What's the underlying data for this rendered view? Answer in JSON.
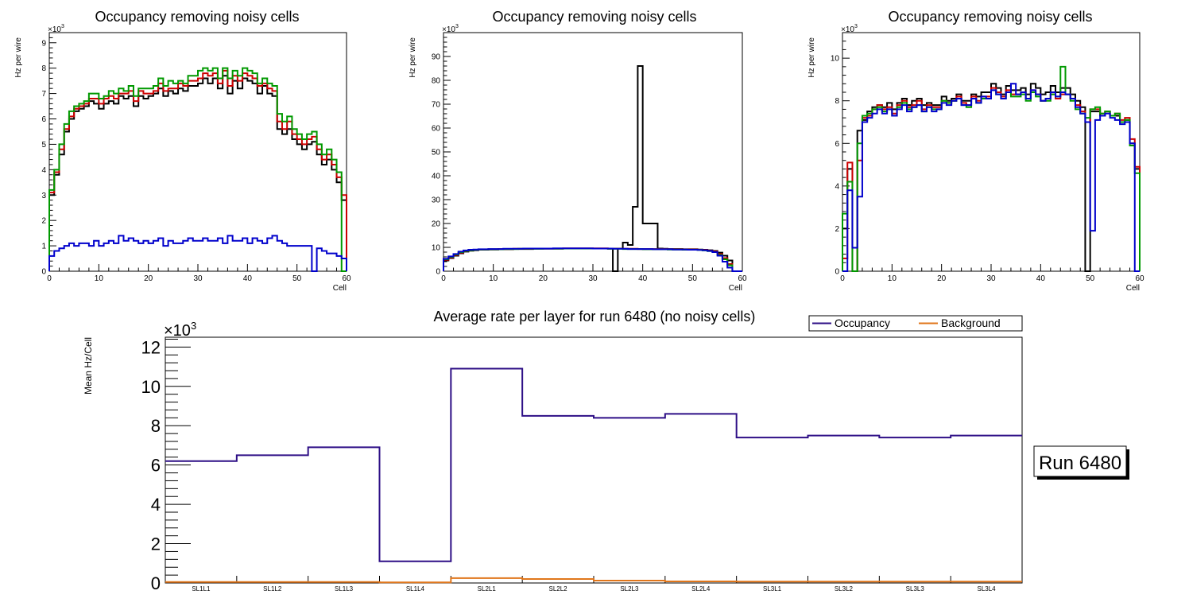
{
  "chart_data": [
    {
      "type": "histogram",
      "title": "Occupancy removing noisy cells",
      "xlabel": "Cell",
      "ylabel": "Hz per wire",
      "multiplier": "×10",
      "multiplier_exp": "3",
      "xlim": [
        0,
        60
      ],
      "ylim": [
        0,
        9.4
      ],
      "xticks": [
        0,
        10,
        20,
        30,
        40,
        50,
        60
      ],
      "yticks": [
        0,
        1,
        2,
        3,
        4,
        5,
        6,
        7,
        8,
        9
      ],
      "series": [
        {
          "name": "black",
          "color": "#000000",
          "values": [
            3.0,
            3.8,
            4.6,
            5.5,
            6.0,
            6.3,
            6.4,
            6.5,
            6.7,
            6.6,
            6.4,
            6.6,
            6.7,
            6.6,
            6.9,
            6.8,
            6.9,
            6.5,
            6.9,
            6.8,
            6.9,
            7.0,
            7.2,
            6.9,
            7.1,
            7.0,
            7.2,
            7.1,
            7.3,
            7.3,
            7.4,
            7.6,
            7.4,
            7.6,
            7.2,
            7.7,
            7.0,
            7.5,
            7.2,
            7.6,
            7.5,
            7.4,
            7.0,
            7.3,
            7.0,
            6.9,
            5.6,
            5.4,
            5.6,
            5.2,
            5.0,
            4.8,
            5.0,
            5.1,
            4.6,
            4.2,
            4.4,
            4.0,
            3.5,
            2.8
          ]
        },
        {
          "name": "red",
          "color": "#cc0000",
          "values": [
            3.1,
            3.9,
            4.8,
            5.6,
            6.1,
            6.4,
            6.5,
            6.6,
            6.8,
            6.8,
            6.6,
            6.8,
            6.9,
            6.8,
            7.0,
            7.0,
            7.1,
            6.7,
            7.1,
            7.0,
            7.0,
            7.1,
            7.4,
            7.1,
            7.2,
            7.2,
            7.4,
            7.3,
            7.5,
            7.5,
            7.6,
            7.8,
            7.7,
            7.8,
            7.4,
            7.9,
            7.3,
            7.7,
            7.5,
            7.8,
            7.7,
            7.6,
            7.3,
            7.4,
            7.2,
            7.1,
            5.9,
            5.6,
            5.9,
            5.4,
            5.2,
            5.0,
            5.2,
            5.3,
            4.8,
            4.4,
            4.6,
            4.2,
            3.7,
            3.0
          ]
        },
        {
          "name": "green",
          "color": "#009900",
          "values": [
            3.2,
            4.0,
            5.0,
            5.8,
            6.3,
            6.5,
            6.6,
            6.7,
            7.0,
            7.0,
            6.8,
            6.9,
            7.1,
            7.0,
            7.2,
            7.1,
            7.3,
            6.9,
            7.2,
            7.2,
            7.2,
            7.3,
            7.6,
            7.3,
            7.5,
            7.4,
            7.5,
            7.4,
            7.7,
            7.7,
            7.9,
            8.0,
            7.9,
            8.0,
            7.6,
            8.0,
            7.6,
            7.9,
            7.7,
            8.0,
            7.9,
            7.8,
            7.4,
            7.6,
            7.4,
            7.3,
            6.2,
            5.9,
            6.1,
            5.6,
            5.4,
            5.2,
            5.4,
            5.5,
            5.0,
            4.6,
            4.8,
            4.4,
            3.9,
            0.0
          ]
        },
        {
          "name": "blue",
          "color": "#0000cc",
          "values": [
            0.6,
            0.8,
            0.9,
            1.0,
            1.1,
            1.0,
            1.1,
            1.1,
            1.0,
            1.2,
            1.0,
            1.1,
            1.2,
            1.1,
            1.4,
            1.2,
            1.3,
            1.2,
            1.1,
            1.2,
            1.1,
            1.2,
            1.3,
            1.0,
            1.2,
            1.1,
            1.1,
            1.2,
            1.3,
            1.2,
            1.2,
            1.3,
            1.2,
            1.2,
            1.3,
            1.1,
            1.4,
            1.2,
            1.2,
            1.3,
            1.1,
            1.3,
            1.2,
            1.1,
            1.3,
            1.4,
            1.2,
            1.1,
            1.0,
            1.0,
            1.0,
            1.0,
            1.0,
            0.0,
            0.9,
            0.8,
            0.7,
            0.7,
            0.6,
            0.5
          ]
        }
      ]
    },
    {
      "type": "histogram",
      "title": "Occupancy removing noisy cells",
      "xlabel": "Cell",
      "ylabel": "Hz per wire",
      "multiplier": "×10",
      "multiplier_exp": "3",
      "xlim": [
        0,
        60
      ],
      "ylim": [
        0,
        100
      ],
      "xticks": [
        0,
        10,
        20,
        30,
        40,
        50,
        60
      ],
      "yticks": [
        0,
        10,
        20,
        30,
        40,
        50,
        60,
        70,
        80,
        90
      ],
      "series": [
        {
          "name": "black",
          "color": "#000000",
          "values": [
            4.5,
            5.5,
            6.5,
            7.5,
            8.2,
            8.6,
            8.8,
            9.0,
            9.0,
            9.1,
            9.1,
            9.2,
            9.2,
            9.2,
            9.3,
            9.3,
            9.3,
            9.3,
            9.4,
            9.4,
            9.4,
            9.4,
            9.4,
            9.4,
            9.5,
            9.5,
            9.5,
            9.5,
            9.5,
            9.5,
            9.5,
            9.5,
            9.5,
            9.4,
            0.0,
            9.5,
            12.0,
            11.0,
            27.0,
            86.0,
            20.0,
            20.0,
            20.0,
            9.5,
            9.4,
            9.3,
            9.3,
            9.3,
            9.2,
            9.2,
            9.2,
            9.1,
            9.0,
            8.8,
            8.5,
            7.8,
            6.5,
            4.5,
            0.0,
            0.0
          ]
        },
        {
          "name": "red",
          "color": "#cc0000",
          "values": [
            4.8,
            5.8,
            6.8,
            7.8,
            8.4,
            8.8,
            9.0,
            9.1,
            9.1,
            9.2,
            9.2,
            9.3,
            9.3,
            9.3,
            9.4,
            9.4,
            9.4,
            9.4,
            9.5,
            9.5,
            9.5,
            9.5,
            9.5,
            9.5,
            9.6,
            9.6,
            9.6,
            9.6,
            9.6,
            9.6,
            9.6,
            9.6,
            9.6,
            9.5,
            9.5,
            9.5,
            9.4,
            9.4,
            9.4,
            9.3,
            9.3,
            9.3,
            9.3,
            9.3,
            9.3,
            9.2,
            9.2,
            9.2,
            9.1,
            9.1,
            9.1,
            9.0,
            8.9,
            8.6,
            8.2,
            7.2,
            5.5,
            3.0,
            0.0,
            0.0
          ]
        },
        {
          "name": "green",
          "color": "#009900",
          "values": [
            5.0,
            6.0,
            7.0,
            8.0,
            8.5,
            8.8,
            9.0,
            9.1,
            9.1,
            9.2,
            9.2,
            9.2,
            9.3,
            9.3,
            9.3,
            9.4,
            9.4,
            9.4,
            9.4,
            9.4,
            9.5,
            9.5,
            9.5,
            9.5,
            9.5,
            9.5,
            9.5,
            9.5,
            9.5,
            9.5,
            9.5,
            9.5,
            9.5,
            9.4,
            9.4,
            9.4,
            9.3,
            9.3,
            9.3,
            9.3,
            9.2,
            9.2,
            9.2,
            9.2,
            9.2,
            9.1,
            9.1,
            9.1,
            9.0,
            9.0,
            9.0,
            8.9,
            8.7,
            8.4,
            8.0,
            6.8,
            5.0,
            2.5,
            0.0,
            0.0
          ]
        },
        {
          "name": "blue",
          "color": "#0000cc",
          "values": [
            5.2,
            6.2,
            7.2,
            8.2,
            8.7,
            9.0,
            9.1,
            9.2,
            9.2,
            9.3,
            9.3,
            9.3,
            9.4,
            9.4,
            9.4,
            9.4,
            9.5,
            9.5,
            9.5,
            9.5,
            9.5,
            9.5,
            9.6,
            9.6,
            9.6,
            9.6,
            9.6,
            9.6,
            9.6,
            9.6,
            9.5,
            9.5,
            9.5,
            9.5,
            9.4,
            9.4,
            9.4,
            9.3,
            9.3,
            9.3,
            9.3,
            9.3,
            9.2,
            9.2,
            9.2,
            9.2,
            9.1,
            9.1,
            9.1,
            9.0,
            9.0,
            8.9,
            8.8,
            8.5,
            8.0,
            6.5,
            4.0,
            1.5,
            0.0,
            0.0
          ]
        }
      ]
    },
    {
      "type": "histogram",
      "title": "Occupancy removing noisy cells",
      "xlabel": "Cell",
      "ylabel": "Hz per wire",
      "multiplier": "×10",
      "multiplier_exp": "3",
      "xlim": [
        0,
        60
      ],
      "ylim": [
        0,
        11.2
      ],
      "xticks": [
        0,
        10,
        20,
        30,
        40,
        50,
        60
      ],
      "yticks": [
        0,
        2,
        4,
        6,
        8,
        10
      ],
      "series": [
        {
          "name": "black",
          "color": "#000000",
          "values": [
            2.0,
            4.8,
            0.0,
            6.6,
            7.1,
            7.5,
            7.7,
            7.8,
            7.7,
            7.9,
            7.6,
            7.9,
            8.1,
            7.8,
            8.0,
            8.1,
            7.8,
            7.9,
            7.8,
            7.8,
            8.2,
            8.0,
            8.1,
            8.3,
            8.0,
            8.0,
            8.3,
            8.2,
            8.4,
            8.4,
            8.8,
            8.6,
            8.3,
            8.7,
            8.5,
            8.5,
            8.6,
            8.3,
            8.8,
            8.6,
            8.3,
            8.4,
            8.7,
            8.4,
            8.6,
            8.6,
            8.3,
            8.0,
            7.7,
            0.0,
            7.5,
            7.5,
            7.3,
            7.5,
            7.3,
            7.3,
            7.0,
            7.1,
            6.0,
            4.8
          ]
        },
        {
          "name": "red",
          "color": "#cc0000",
          "values": [
            0.6,
            5.1,
            0.0,
            5.2,
            7.2,
            7.3,
            7.6,
            7.8,
            7.6,
            7.7,
            7.4,
            7.8,
            8.0,
            7.7,
            7.8,
            8.0,
            7.6,
            7.8,
            7.7,
            7.7,
            8.0,
            7.9,
            8.0,
            8.2,
            7.9,
            7.8,
            8.2,
            8.0,
            8.2,
            8.2,
            8.6,
            8.4,
            8.2,
            8.5,
            8.3,
            8.3,
            8.4,
            8.1,
            8.5,
            8.3,
            8.0,
            8.1,
            8.3,
            8.1,
            8.3,
            8.3,
            8.1,
            7.8,
            7.5,
            7.0,
            7.6,
            7.6,
            7.4,
            7.5,
            7.3,
            7.4,
            7.1,
            7.2,
            6.2,
            4.9
          ]
        },
        {
          "name": "green",
          "color": "#009900",
          "values": [
            2.7,
            4.2,
            0.0,
            6.0,
            7.3,
            7.4,
            7.6,
            7.7,
            7.5,
            7.6,
            7.3,
            7.7,
            7.9,
            7.6,
            7.7,
            7.8,
            7.5,
            7.7,
            7.6,
            7.6,
            8.0,
            7.9,
            8.0,
            8.1,
            7.8,
            7.7,
            8.1,
            7.9,
            8.1,
            8.1,
            8.5,
            8.3,
            8.1,
            8.4,
            8.2,
            8.2,
            8.3,
            8.0,
            8.4,
            8.2,
            8.0,
            8.0,
            8.3,
            8.2,
            9.6,
            8.3,
            8.0,
            7.6,
            7.4,
            7.2,
            7.6,
            7.7,
            7.4,
            7.5,
            7.3,
            7.4,
            7.0,
            7.1,
            5.9,
            4.6
          ]
        },
        {
          "name": "blue",
          "color": "#0000cc",
          "values": [
            0.0,
            3.8,
            1.1,
            3.5,
            7.0,
            7.2,
            7.4,
            7.6,
            7.4,
            7.6,
            7.3,
            7.6,
            7.8,
            7.5,
            7.7,
            7.8,
            7.5,
            7.7,
            7.5,
            7.6,
            7.9,
            7.8,
            8.0,
            8.1,
            7.8,
            7.8,
            8.1,
            7.9,
            8.2,
            8.1,
            8.5,
            8.3,
            8.1,
            8.4,
            8.8,
            8.3,
            8.4,
            8.1,
            8.5,
            8.3,
            8.0,
            8.1,
            8.4,
            8.2,
            8.4,
            8.3,
            8.1,
            7.7,
            7.4,
            7.0,
            1.9,
            7.1,
            7.3,
            7.4,
            7.2,
            7.1,
            6.9,
            7.0,
            6.0,
            0.0
          ]
        }
      ]
    },
    {
      "type": "line",
      "title": "Average rate per layer for run 6480 (no noisy cells)",
      "ylabel": "Mean Hz/Cell",
      "multiplier": "×10",
      "multiplier_exp": "3",
      "categories": [
        "SL1L1",
        "SL1L2",
        "SL1L3",
        "SL1L4",
        "SL2L1",
        "SL2L2",
        "SL2L3",
        "SL2L4",
        "SL3L1",
        "SL3L2",
        "SL3L3",
        "SL3L4"
      ],
      "ylim": [
        0,
        12.5
      ],
      "yticks": [
        0,
        2,
        4,
        6,
        8,
        10,
        12
      ],
      "legend_position": "top-right",
      "series": [
        {
          "name": "Occupancy",
          "color": "#2e0f86",
          "values": [
            6.2,
            6.5,
            6.9,
            1.1,
            10.9,
            8.5,
            8.4,
            8.6,
            7.4,
            7.5,
            7.4,
            7.5
          ]
        },
        {
          "name": "Background",
          "color": "#e0761b",
          "values": [
            0.05,
            0.05,
            0.05,
            0.03,
            0.25,
            0.2,
            0.12,
            0.08,
            0.07,
            0.07,
            0.07,
            0.07
          ]
        }
      ]
    }
  ],
  "run_box": {
    "label": "Run 6480"
  }
}
